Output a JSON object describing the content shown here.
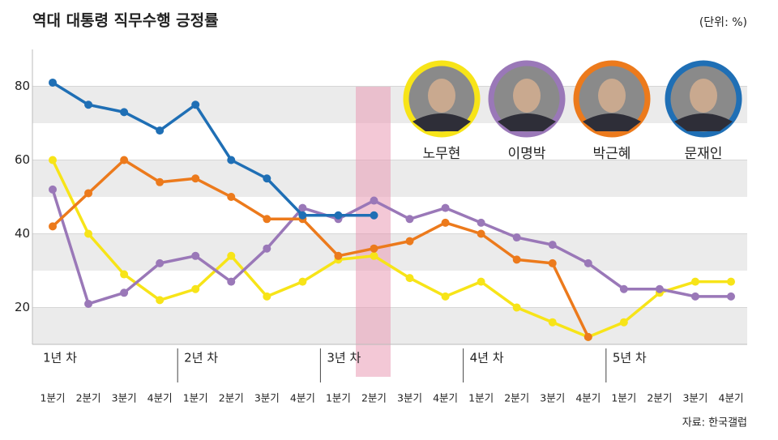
{
  "chart_data": {
    "type": "line",
    "title": "역대 대통령 직무수행 긍정률",
    "unit": "(단위: %)",
    "source": "자료: 한국갤럽",
    "years": [
      "1년 차",
      "2년 차",
      "3년 차",
      "4년 차",
      "5년 차"
    ],
    "categories": [
      "1분기",
      "2분기",
      "3분기",
      "4분기",
      "1분기",
      "2분기",
      "3분기",
      "4분기",
      "1분기",
      "2분기",
      "3분기",
      "4분기",
      "1분기",
      "2분기",
      "3분기",
      "4분기",
      "1분기",
      "2분기",
      "3분기",
      "4분기"
    ],
    "series": [
      {
        "name": "노무현",
        "color": "#f7e418",
        "values": [
          60,
          40,
          29,
          22,
          25,
          34,
          23,
          27,
          33,
          34,
          28,
          23,
          27,
          20,
          16,
          12,
          16,
          24,
          27,
          27
        ]
      },
      {
        "name": "이명박",
        "color": "#9a78b8",
        "values": [
          52,
          21,
          24,
          32,
          34,
          27,
          36,
          47,
          44,
          49,
          44,
          47,
          43,
          39,
          37,
          32,
          25,
          25,
          23,
          23
        ]
      },
      {
        "name": "박근혜",
        "color": "#ec7a1c",
        "values": [
          42,
          51,
          60,
          54,
          55,
          50,
          44,
          44,
          34,
          36,
          38,
          43,
          40,
          33,
          32,
          12,
          null,
          null,
          null,
          null
        ]
      },
      {
        "name": "문재인",
        "color": "#1f6fb5",
        "values": [
          81,
          75,
          73,
          68,
          75,
          60,
          55,
          45,
          45,
          45,
          null,
          null,
          null,
          null,
          null,
          null,
          null,
          null,
          null,
          null
        ]
      }
    ],
    "ylim": [
      10,
      90
    ],
    "yticks": [
      20,
      40,
      60,
      80
    ],
    "grid": true
  }
}
